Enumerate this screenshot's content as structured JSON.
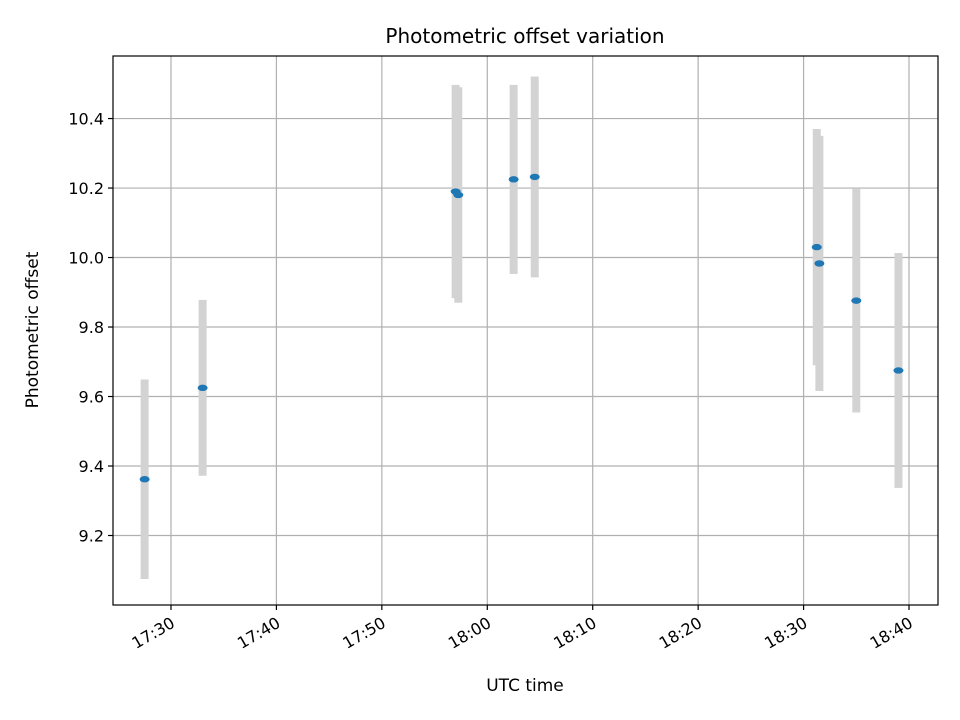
{
  "chart_data": {
    "type": "scatter",
    "title": "Photometric offset variation",
    "xlabel": "UTC time",
    "ylabel": "Photometric offset",
    "xlim": [
      "17:24:30",
      "18:42:45"
    ],
    "ylim": [
      9.0,
      10.58
    ],
    "x_ticks": [
      "17:30",
      "17:40",
      "17:50",
      "18:00",
      "18:10",
      "18:20",
      "18:30",
      "18:40"
    ],
    "y_ticks": [
      9.2,
      9.4,
      9.6,
      9.8,
      10.0,
      10.2,
      10.4
    ],
    "grid": true,
    "colors": {
      "point": "#1f77b4",
      "errorbar": "#d3d3d3",
      "grid": "#b0b0b0"
    },
    "points": [
      {
        "x": "17:27:30",
        "y": 9.362,
        "yerr": 0.287
      },
      {
        "x": "17:33:00",
        "y": 9.625,
        "yerr": 0.253
      },
      {
        "x": "17:57:00",
        "y": 10.19,
        "yerr": 0.307
      },
      {
        "x": "17:57:15",
        "y": 10.18,
        "yerr": 0.31
      },
      {
        "x": "18:02:30",
        "y": 10.225,
        "yerr": 0.272
      },
      {
        "x": "18:04:30",
        "y": 10.232,
        "yerr": 0.289
      },
      {
        "x": "18:31:15",
        "y": 10.03,
        "yerr": 0.34
      },
      {
        "x": "18:31:30",
        "y": 9.983,
        "yerr": 0.367
      },
      {
        "x": "18:35:00",
        "y": 9.876,
        "yerr": 0.322
      },
      {
        "x": "18:39:00",
        "y": 9.675,
        "yerr": 0.338
      }
    ]
  }
}
